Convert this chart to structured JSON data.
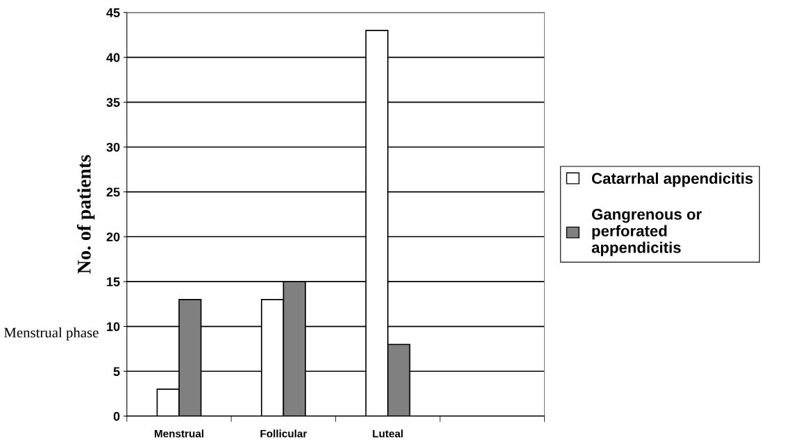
{
  "chart_data": {
    "type": "bar",
    "xlabel": "Menstrual phase",
    "ylabel": "No. of patients",
    "categories": [
      "Menstrual",
      "Follicular",
      "Luteal",
      null
    ],
    "series": [
      {
        "name": "Catarrhal appendicitis",
        "color": "#ffffff",
        "values": [
          3,
          13,
          43,
          null
        ]
      },
      {
        "name": "Gangrenous or perforated appendicitis",
        "color": "#808080",
        "values": [
          13,
          15,
          8,
          null
        ]
      }
    ],
    "ylim": [
      0,
      45
    ],
    "yticks": [
      0,
      5,
      10,
      15,
      20,
      25,
      30,
      35,
      40,
      45
    ],
    "grid": "y",
    "legend": "right"
  }
}
